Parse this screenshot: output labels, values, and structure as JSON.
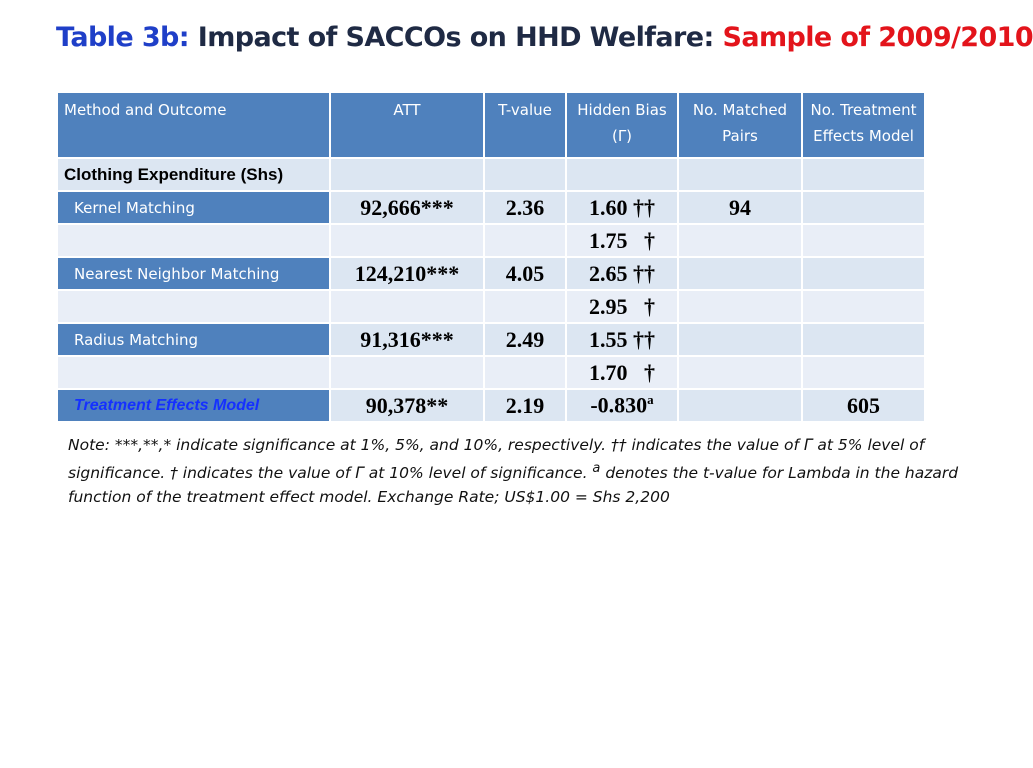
{
  "title": {
    "label": "Table 3b:",
    "main": "Impact of SACCOs on HHD Welfare:",
    "highlight": "Sample of 2009/2010"
  },
  "table": {
    "header": [
      "Method and Outcome",
      "ATT",
      "T-value",
      "Hidden Bias (Γ)",
      "No. Matched Pairs",
      "No. Treatment Effects Model"
    ],
    "section": "Clothing Expenditure (Shs)",
    "rows": [
      [
        "Kernel Matching",
        "92,666***",
        "2.36",
        "1.60 ††",
        "94",
        null
      ],
      [
        null,
        null,
        null,
        "1.75   †",
        null,
        null
      ],
      [
        "Nearest Neighbor Matching",
        "124,210***",
        "4.05",
        "2.65 ††",
        null,
        null
      ],
      [
        null,
        null,
        null,
        "2.95   †",
        null,
        null
      ],
      [
        "Radius Matching",
        "91,316***",
        "2.49",
        "1.55 ††",
        null,
        null
      ],
      [
        null,
        null,
        null,
        "1.70   †",
        null,
        null
      ],
      [
        "Treatment Effects Model",
        "90,378**",
        "2.19",
        {
          "text": "-0.830",
          "sup": "a"
        },
        null,
        "605"
      ]
    ]
  },
  "note": {
    "before": "Note: ***,**,* indicate significance at 1%, 5%, and 10%, respectively. †† indicates the value of Γ at 5% level of significance. † indicates the value of Γ at 10% level of significance. ",
    "sup": "a",
    "after": " denotes the t-value for Lambda in the hazard function of the treatment effect model. Exchange Rate; US$1.00 = Shs 2,200"
  }
}
